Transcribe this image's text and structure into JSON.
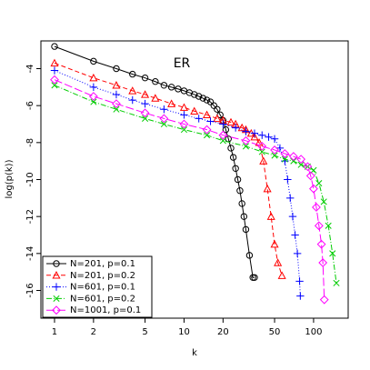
{
  "chart_data": {
    "type": "line",
    "annotation": "ER",
    "xlabel": "k",
    "ylabel": "log(p(k))",
    "xscale": "log",
    "xlim": [
      0.785,
      185
    ],
    "ylim": [
      -17.5,
      -2.5
    ],
    "xticks": [
      1,
      2,
      5,
      10,
      20,
      50,
      100
    ],
    "yticks": [
      -4,
      -6,
      -8,
      -10,
      -12,
      -14,
      -16
    ],
    "legend": "bottom-left",
    "series": [
      {
        "name": "N=201, p=0.1",
        "color": "#000000",
        "marker": "circle",
        "linestyle": "solid",
        "x": [
          1,
          2,
          3,
          4,
          5,
          6,
          7,
          8,
          9,
          10,
          11,
          12,
          13,
          14,
          15,
          16,
          17,
          18,
          19,
          20,
          21,
          22,
          23,
          24,
          25,
          26,
          27,
          28,
          29,
          30,
          32,
          34,
          35
        ],
        "values": [
          -2.8,
          -3.6,
          -4.0,
          -4.3,
          -4.5,
          -4.7,
          -4.9,
          -5.0,
          -5.1,
          -5.2,
          -5.3,
          -5.4,
          -5.5,
          -5.6,
          -5.7,
          -5.8,
          -6.0,
          -6.2,
          -6.5,
          -6.8,
          -7.3,
          -7.8,
          -8.3,
          -8.8,
          -9.4,
          -10.0,
          -10.6,
          -11.3,
          -12.0,
          -12.7,
          -14.1,
          -15.3,
          -15.3
        ]
      },
      {
        "name": "N=201, p=0.2",
        "color": "#ff0000",
        "marker": "triangle",
        "linestyle": "dashed",
        "x": [
          1,
          2,
          3,
          4,
          5,
          6,
          8,
          10,
          12,
          15,
          18,
          20,
          23,
          25,
          28,
          30,
          33,
          35,
          38,
          41,
          44,
          47,
          50,
          53,
          57
        ],
        "values": [
          -3.7,
          -4.5,
          -4.9,
          -5.2,
          -5.4,
          -5.6,
          -5.9,
          -6.1,
          -6.3,
          -6.5,
          -6.7,
          -6.8,
          -6.9,
          -7.0,
          -7.2,
          -7.3,
          -7.5,
          -7.7,
          -8.0,
          -9.0,
          -10.5,
          -12.0,
          -13.5,
          -14.5,
          -15.2
        ]
      },
      {
        "name": "N=601, p=0.1",
        "color": "#0000ff",
        "marker": "plus",
        "linestyle": "dotted",
        "x": [
          1,
          2,
          3,
          4,
          5,
          7,
          10,
          13,
          16,
          20,
          25,
          30,
          35,
          40,
          45,
          50,
          55,
          60,
          63,
          66,
          69,
          72,
          75,
          78,
          79
        ],
        "values": [
          -4.1,
          -5.0,
          -5.4,
          -5.7,
          -5.9,
          -6.2,
          -6.5,
          -6.7,
          -6.85,
          -7.0,
          -7.2,
          -7.4,
          -7.5,
          -7.6,
          -7.7,
          -7.8,
          -8.3,
          -9.0,
          -10.0,
          -11.0,
          -12.0,
          -13.0,
          -14.0,
          -15.5,
          -16.3
        ]
      },
      {
        "name": "N=601, p=0.2",
        "color": "#00cc00",
        "marker": "cross",
        "linestyle": "dashdot",
        "x": [
          1,
          2,
          3,
          5,
          7,
          10,
          15,
          20,
          30,
          40,
          50,
          60,
          70,
          80,
          90,
          100,
          110,
          120,
          130,
          140,
          150
        ],
        "values": [
          -4.9,
          -5.8,
          -6.2,
          -6.7,
          -7.0,
          -7.3,
          -7.6,
          -7.9,
          -8.2,
          -8.5,
          -8.7,
          -8.9,
          -9.0,
          -9.2,
          -9.3,
          -9.5,
          -10.2,
          -11.2,
          -12.5,
          -14.0,
          -15.6
        ]
      },
      {
        "name": "N=1001, p=0.1",
        "color": "#ff00ff",
        "marker": "diamond",
        "linestyle": "longdash",
        "x": [
          1,
          2,
          3,
          5,
          7,
          10,
          15,
          20,
          30,
          40,
          50,
          60,
          70,
          80,
          90,
          95,
          100,
          105,
          110,
          115,
          118,
          121
        ],
        "values": [
          -4.6,
          -5.5,
          -5.9,
          -6.4,
          -6.7,
          -7.0,
          -7.3,
          -7.6,
          -7.9,
          -8.2,
          -8.4,
          -8.6,
          -8.75,
          -8.9,
          -9.3,
          -9.8,
          -10.5,
          -11.5,
          -12.5,
          -13.5,
          -14.5,
          -16.5
        ]
      }
    ]
  }
}
